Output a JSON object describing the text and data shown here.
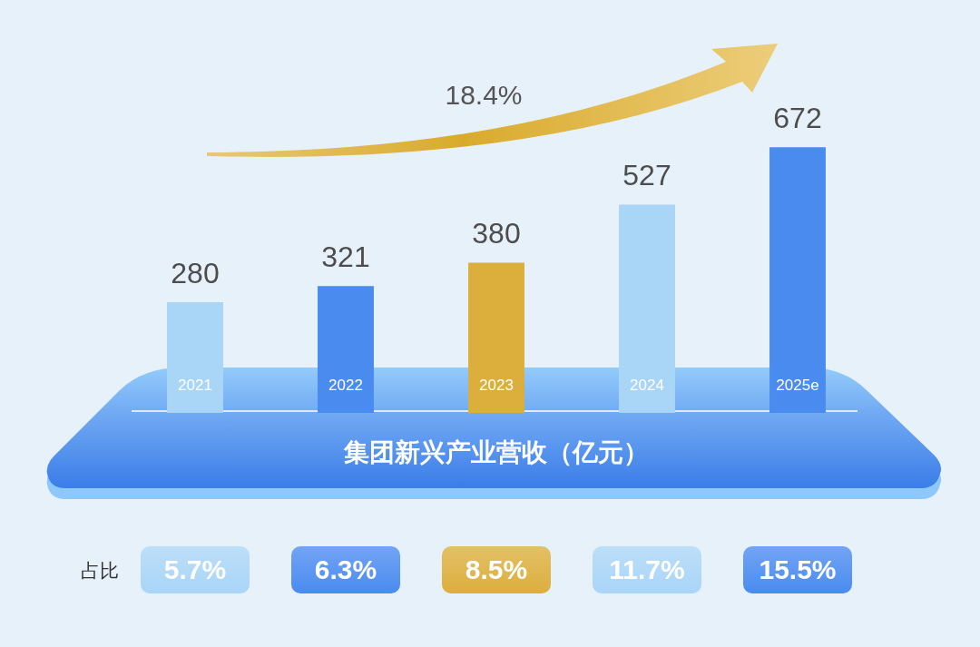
{
  "chart_data": {
    "type": "bar",
    "title": "集团新兴产业营收（亿元）",
    "categories": [
      "2021",
      "2022",
      "2023",
      "2024",
      "2025e"
    ],
    "values": [
      280,
      321,
      380,
      527,
      672
    ],
    "colors": [
      "#a9d5f7",
      "#4a8bf0",
      "#dcae3c",
      "#a9d5f7",
      "#4a8bf0"
    ],
    "data_labels": true,
    "tick_labels": "x",
    "annotations": [
      "18.4%",
      "占比",
      "5.7%",
      "6.3%",
      "8.5%",
      "11.7%",
      "15.5%"
    ]
  }
}
